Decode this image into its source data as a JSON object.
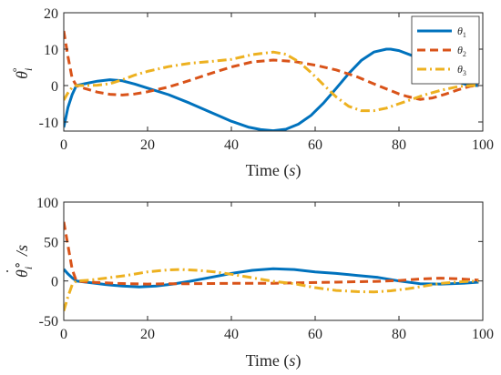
{
  "chart_data": [
    {
      "type": "line",
      "x_axis_title": {
        "prefix": "Time (",
        "var": "s",
        "suffix": ")"
      },
      "y_axis_title": {
        "base": "θ",
        "sub": "i",
        "sup": "∘"
      },
      "xlim": [
        0,
        100
      ],
      "ylim": [
        -12.5,
        20
      ],
      "xticks": [
        0,
        20,
        40,
        60,
        80,
        100
      ],
      "yticks": [
        -10,
        0,
        10,
        20
      ],
      "xtick_labels": [
        "0",
        "20",
        "40",
        "60",
        "80",
        "100"
      ],
      "ytick_labels": [
        "-10",
        "0",
        "10",
        "20"
      ],
      "grid": false,
      "legend": {
        "location": "top-right"
      },
      "series": [
        {
          "name": "θ1",
          "legend_base": "θ",
          "legend_sub": "1",
          "color": "#0072BD",
          "dash": "solid",
          "x": [
            0,
            1,
            2,
            3,
            5,
            8,
            11,
            14,
            17,
            20,
            25,
            30,
            35,
            40,
            44,
            47,
            50,
            53,
            56,
            59,
            62,
            65,
            68,
            71,
            74,
            77,
            78,
            80,
            83,
            86,
            88,
            90,
            93,
            96,
            98,
            99
          ],
          "y": [
            -11.5,
            -6,
            -2.5,
            0,
            0.5,
            1.2,
            1.6,
            1.3,
            0.4,
            -0.7,
            -2.5,
            -4.8,
            -7.3,
            -9.8,
            -11.4,
            -12.1,
            -12.4,
            -12.0,
            -10.6,
            -8.2,
            -4.8,
            -0.8,
            3.3,
            6.9,
            9.2,
            10.0,
            10.0,
            9.6,
            8.3,
            6.3,
            4.7,
            3.1,
            1.4,
            0.3,
            0,
            0
          ]
        },
        {
          "name": "θ2",
          "legend_base": "θ",
          "legend_sub": "2",
          "color": "#D95319",
          "dash": "dashed",
          "x": [
            0,
            1,
            2,
            3,
            5,
            8,
            11,
            14,
            17,
            20,
            25,
            30,
            35,
            40,
            45,
            50,
            55,
            60,
            65,
            70,
            75,
            80,
            82,
            85,
            88,
            91,
            94,
            97,
            99
          ],
          "y": [
            15,
            8,
            2,
            0,
            -0.8,
            -1.8,
            -2.4,
            -2.6,
            -2.3,
            -1.7,
            -0.4,
            1.4,
            3.3,
            5.1,
            6.5,
            7.0,
            6.6,
            5.6,
            4.3,
            2.4,
            0,
            -2.3,
            -3.0,
            -3.8,
            -3.4,
            -2.4,
            -1.2,
            -0.2,
            0
          ]
        },
        {
          "name": "θ3",
          "legend_base": "θ",
          "legend_sub": "3",
          "color": "#EDB120",
          "dash": "dashdot",
          "x": [
            0,
            1,
            2,
            3,
            5,
            8,
            11,
            14,
            17,
            20,
            25,
            30,
            35,
            40,
            45,
            50,
            53,
            56,
            59,
            62,
            65,
            68,
            71,
            74,
            77,
            80,
            83,
            86,
            90,
            94,
            97,
            99
          ],
          "y": [
            -4,
            -2,
            -0.5,
            0,
            0,
            0.1,
            0.5,
            1.6,
            2.9,
            3.9,
            5.2,
            6.1,
            6.6,
            7.2,
            8.5,
            9.2,
            8.6,
            6.6,
            3.6,
            0.2,
            -3.1,
            -5.7,
            -6.9,
            -6.9,
            -6.2,
            -5.0,
            -3.8,
            -2.6,
            -1.3,
            -0.3,
            0,
            0
          ]
        }
      ]
    },
    {
      "type": "line",
      "x_axis_title": {
        "prefix": "Time (",
        "var": "s",
        "suffix": ")"
      },
      "y_axis_title": {
        "base": "θ",
        "sub": "i",
        "sup": "∘",
        "suffix": "/s"
      },
      "xlim": [
        0,
        100
      ],
      "ylim": [
        -50,
        100
      ],
      "xticks": [
        0,
        20,
        40,
        60,
        80,
        100
      ],
      "yticks": [
        -50,
        0,
        50,
        100
      ],
      "xtick_labels": [
        "0",
        "20",
        "40",
        "60",
        "80",
        "100"
      ],
      "ytick_labels": [
        "-50",
        "0",
        "50",
        "100"
      ],
      "grid": false,
      "series": [
        {
          "name": "θ1",
          "color": "#0072BD",
          "dash": "solid",
          "x": [
            0,
            1,
            2,
            3,
            6,
            10,
            14,
            18,
            22,
            26,
            30,
            35,
            40,
            45,
            50,
            55,
            60,
            65,
            70,
            75,
            80,
            85,
            90,
            95,
            99
          ],
          "y": [
            15,
            9,
            4,
            0,
            -2,
            -4.5,
            -6.5,
            -7.5,
            -6.5,
            -4,
            -0.5,
            4.5,
            9.5,
            13.5,
            15.5,
            14.5,
            11.5,
            9.5,
            7,
            4.5,
            0,
            -3.5,
            -4,
            -3,
            -1.5
          ]
        },
        {
          "name": "θ2",
          "color": "#D95319",
          "dash": "dashed",
          "x": [
            0,
            1,
            2,
            3,
            6,
            10,
            15,
            20,
            25,
            30,
            40,
            50,
            55,
            60,
            65,
            70,
            75,
            80,
            85,
            90,
            95,
            99
          ],
          "y": [
            75,
            45,
            15,
            0,
            -1.5,
            -2.5,
            -3.5,
            -4,
            -3.5,
            -3.5,
            -3,
            -3,
            -2.5,
            -2,
            -1.5,
            -1,
            -0.5,
            0.5,
            2.5,
            3.5,
            2.5,
            1
          ]
        },
        {
          "name": "θ3",
          "color": "#EDB120",
          "dash": "dashdot",
          "x": [
            0,
            1,
            2,
            3,
            6,
            10,
            15,
            20,
            25,
            28,
            32,
            36,
            40,
            45,
            50,
            55,
            60,
            65,
            70,
            74,
            78,
            82,
            86,
            90,
            95,
            99
          ],
          "y": [
            -38,
            -20,
            -5,
            0,
            1,
            3.5,
            7,
            11.5,
            14,
            14.5,
            13.5,
            11.5,
            8.5,
            4,
            -0.5,
            -3.5,
            -8.5,
            -12,
            -13.5,
            -14,
            -12.5,
            -10,
            -6.5,
            -3,
            -1,
            0
          ]
        }
      ]
    }
  ]
}
